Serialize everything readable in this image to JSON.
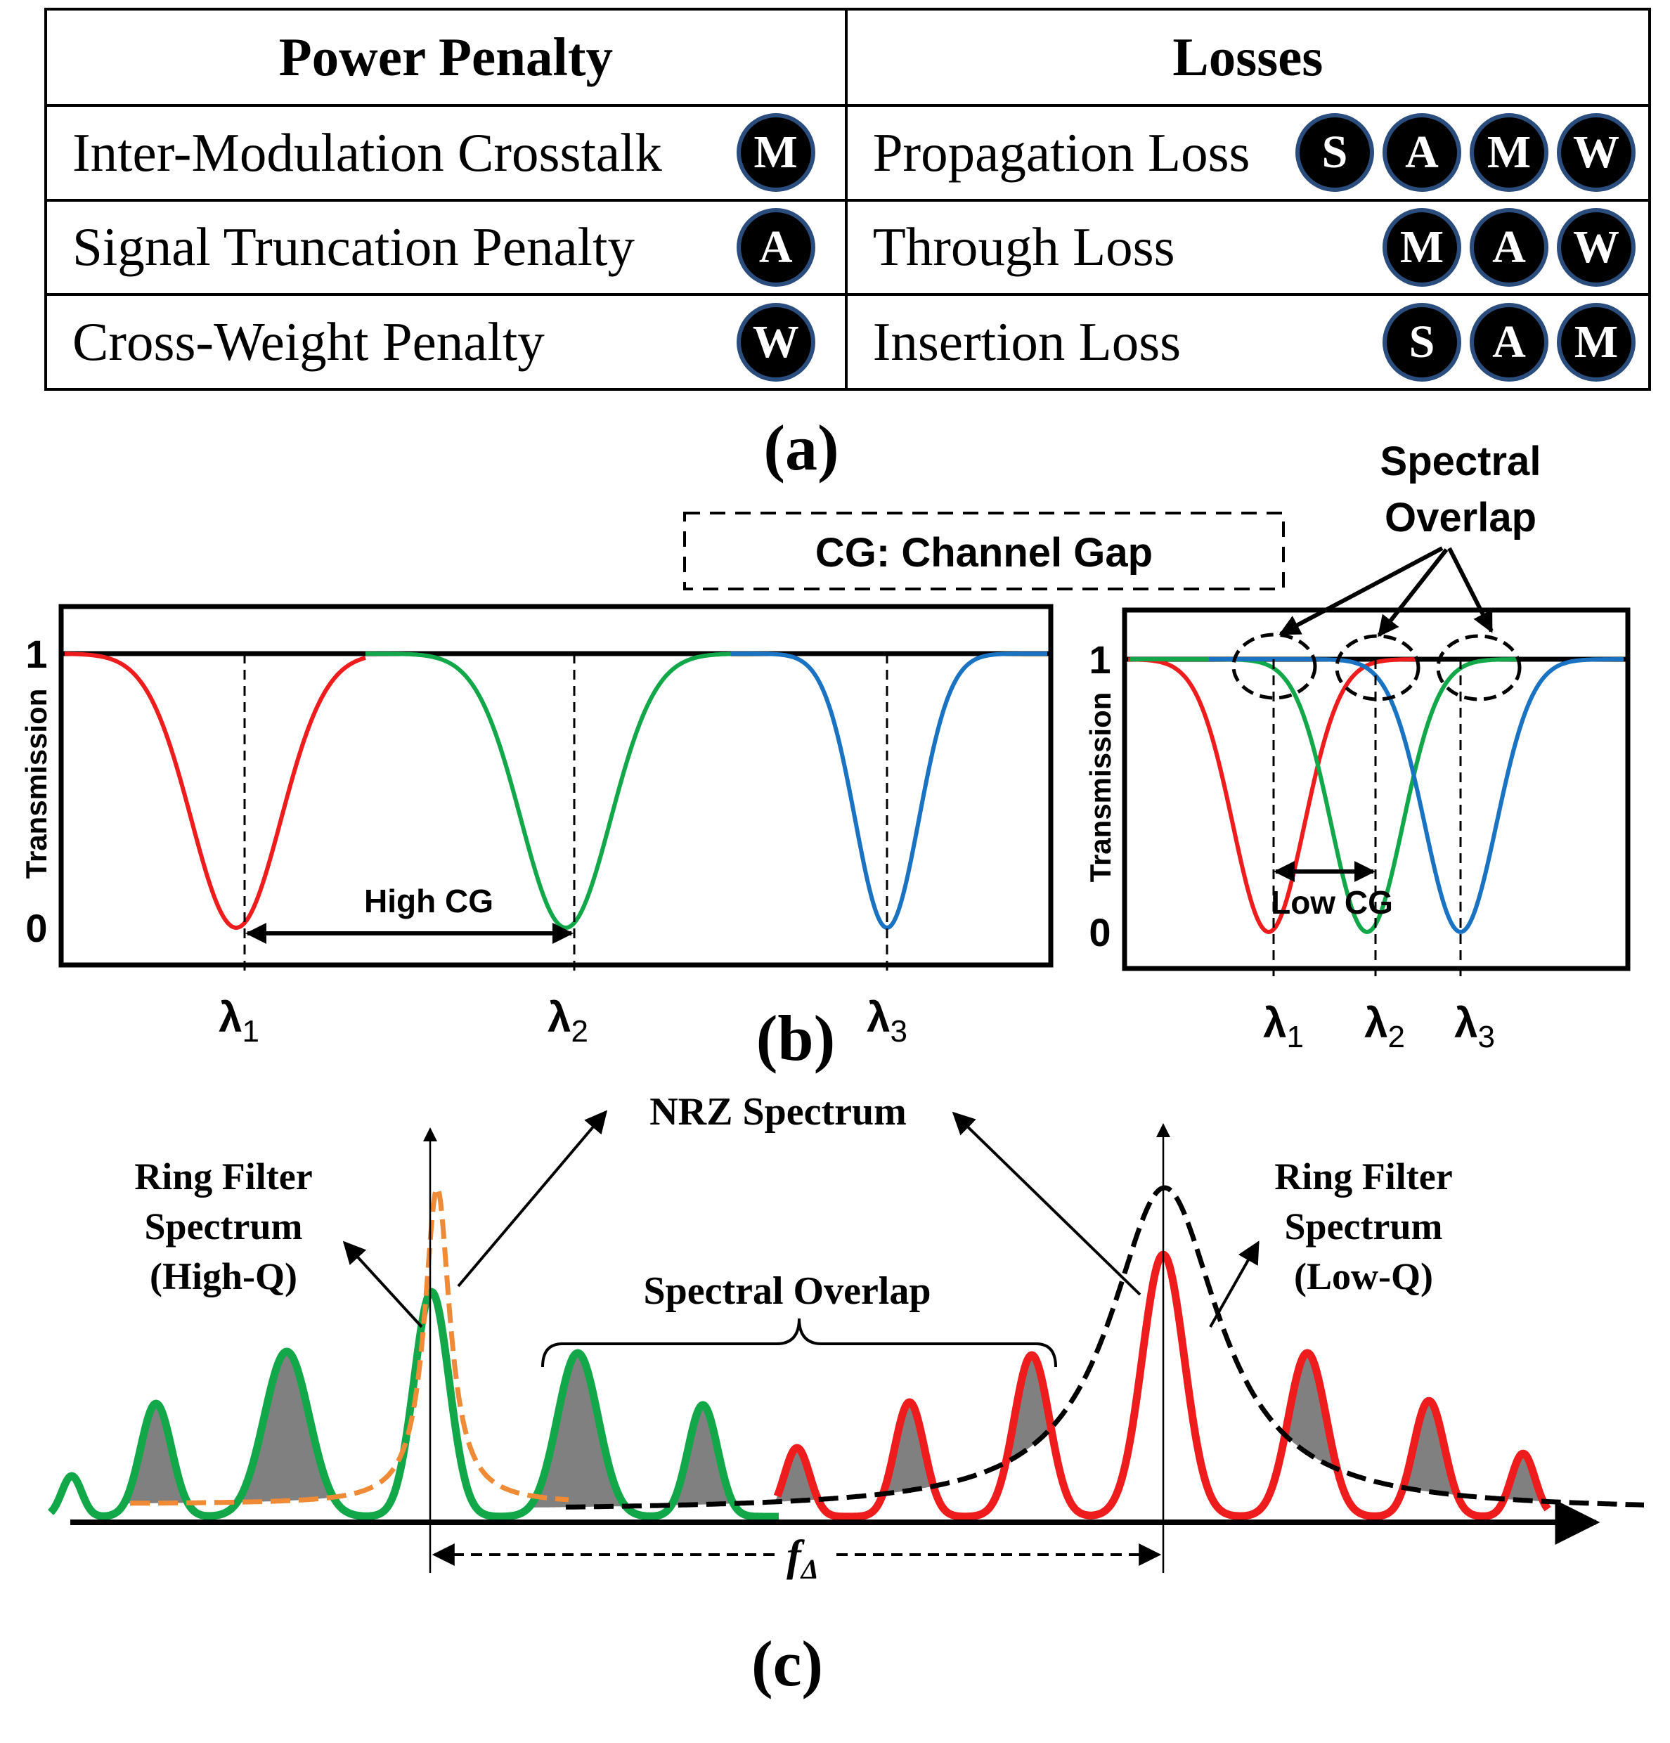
{
  "table": {
    "headers": {
      "left": "Power Penalty",
      "right": "Losses"
    },
    "rows": [
      {
        "left": {
          "label": "Inter-Modulation Crosstalk",
          "badges": [
            "M"
          ]
        },
        "right": {
          "label": "Propagation Loss",
          "badges": [
            "S",
            "A",
            "M",
            "W"
          ]
        }
      },
      {
        "left": {
          "label": "Signal Truncation Penalty",
          "badges": [
            "A"
          ]
        },
        "right": {
          "label": "Through Loss",
          "badges": [
            "M",
            "A",
            "W"
          ]
        }
      },
      {
        "left": {
          "label": "Cross-Weight Penalty",
          "badges": [
            "W"
          ]
        },
        "right": {
          "label": "Insertion Loss",
          "badges": [
            "S",
            "A",
            "M"
          ]
        }
      }
    ]
  },
  "captions": {
    "a": "(a)",
    "b": "(b)",
    "c": "(c)"
  },
  "panel_b": {
    "legend_box": "CG: Channel Gap",
    "left_plot": {
      "ylabel": "Transmission",
      "y_ticks": [
        "1",
        "0"
      ],
      "gap_label": "High CG",
      "lambdas": [
        {
          "sym": "λ",
          "sub": "1"
        },
        {
          "sym": "λ",
          "sub": "2"
        },
        {
          "sym": "λ",
          "sub": "3"
        }
      ]
    },
    "right_plot": {
      "ylabel": "Transmission",
      "y_ticks": [
        "1",
        "0"
      ],
      "gap_label": "Low CG",
      "overlap_label_line1": "Spectral",
      "overlap_label_line2": "Overlap",
      "lambdas": [
        {
          "sym": "λ",
          "sub": "1"
        },
        {
          "sym": "λ",
          "sub": "2"
        },
        {
          "sym": "λ",
          "sub": "3"
        }
      ]
    },
    "curve_colors": [
      "#ee1c1c",
      "#12a84a",
      "#1a72c2"
    ]
  },
  "panel_c": {
    "nrz_label": "NRZ Spectrum",
    "ring_high_q": [
      "Ring Filter",
      "Spectrum",
      "(High-Q)"
    ],
    "ring_low_q": [
      "Ring Filter",
      "Spectrum",
      "(Low-Q)"
    ],
    "overlap_label": "Spectral Overlap",
    "freq_label": {
      "sym": "f",
      "sub": "Δ"
    },
    "colors": {
      "green": "#12a84a",
      "red": "#ee1c1c",
      "orange": "#ef8a36",
      "fill": "#808080"
    }
  }
}
